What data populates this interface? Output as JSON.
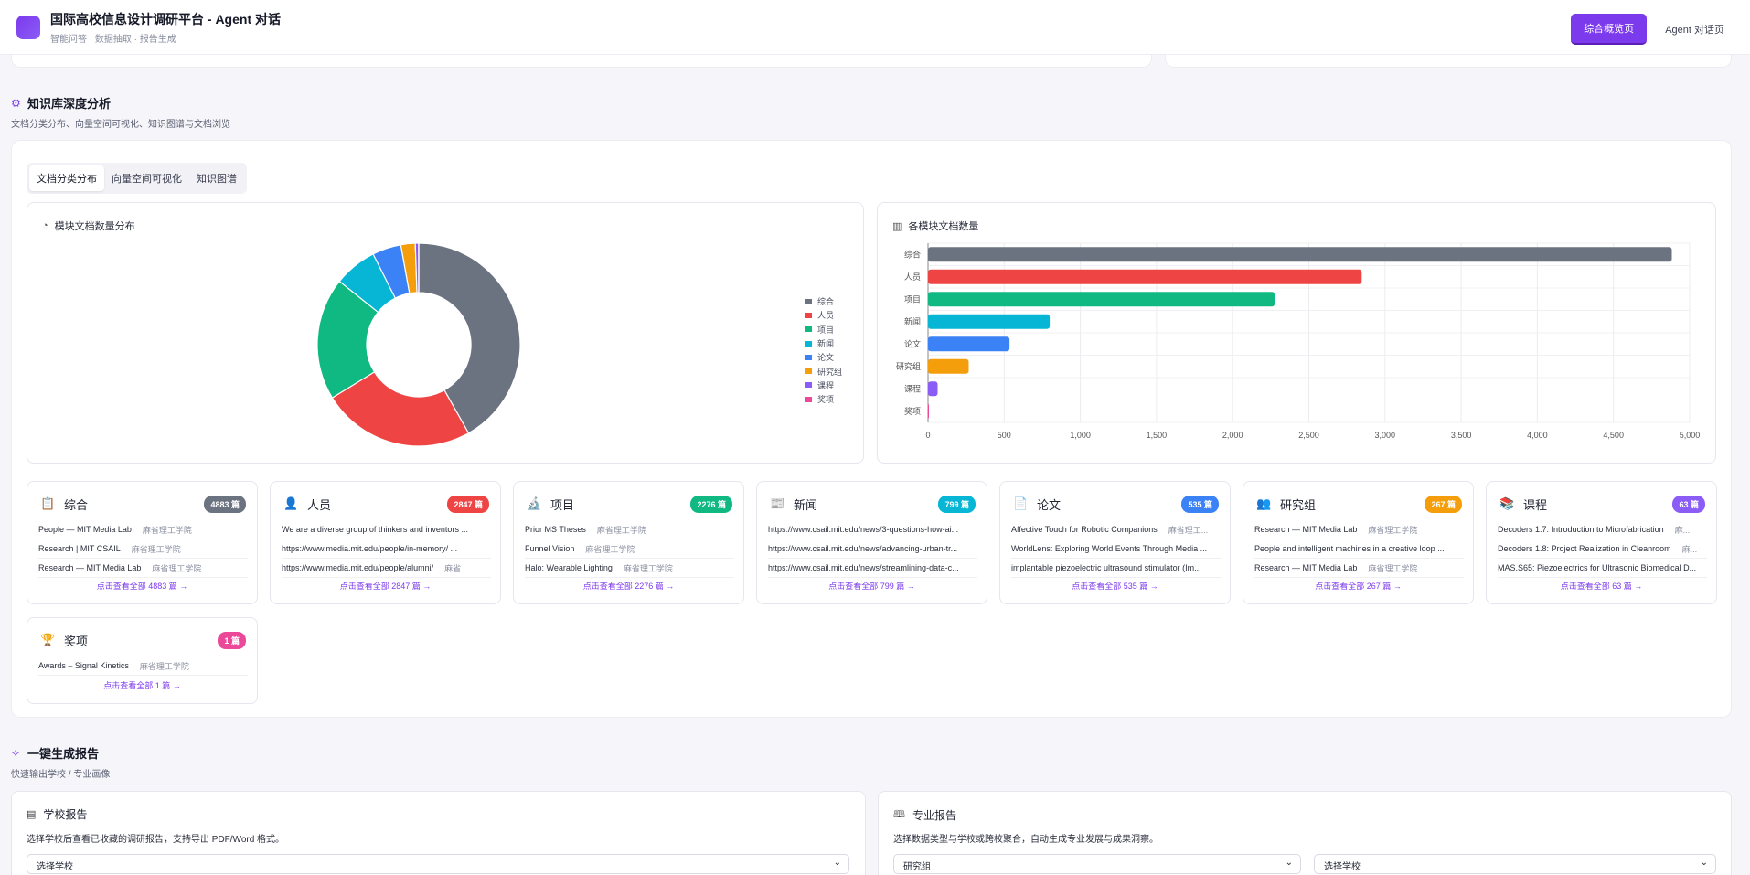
{
  "header": {
    "title": "国际高校信息设计调研平台 - Agent 对话",
    "subtitle": "智能问答 · 数据抽取 · 报告生成",
    "nav": [
      "综合概览页",
      "Agent 对话页"
    ]
  },
  "kb": {
    "title": "知识库深度分析",
    "subtitle": "文档分类分布、向量空间可视化、知识图谱与文档浏览",
    "tabs": [
      "文档分类分布",
      "向量空间可视化",
      "知识图谱"
    ]
  },
  "donut": {
    "title": "模块文档数量分布",
    "legend": [
      "综合",
      "人员",
      "项目",
      "新闻",
      "论文",
      "研究组",
      "课程",
      "奖项"
    ]
  },
  "bar": {
    "title": "各模块文档数量"
  },
  "chart_data": [
    {
      "type": "pie",
      "title": "模块文档数量分布",
      "categories": [
        "综合",
        "人员",
        "项目",
        "新闻",
        "论文",
        "研究组",
        "课程",
        "奖项"
      ],
      "values": [
        4883,
        2847,
        2276,
        799,
        535,
        267,
        63,
        1
      ],
      "colors": [
        "#6b7280",
        "#ef4444",
        "#10b981",
        "#06b6d4",
        "#3b82f6",
        "#f59e0b",
        "#8b5cf6",
        "#ec4899"
      ],
      "legend": "right"
    },
    {
      "type": "bar",
      "orientation": "horizontal",
      "title": "各模块文档数量",
      "categories": [
        "综合",
        "人员",
        "项目",
        "新闻",
        "论文",
        "研究组",
        "课程",
        "奖项"
      ],
      "values": [
        4883,
        2847,
        2276,
        799,
        535,
        267,
        63,
        1
      ],
      "colors": [
        "#6b7280",
        "#ef4444",
        "#10b981",
        "#06b6d4",
        "#3b82f6",
        "#f59e0b",
        "#8b5cf6",
        "#ec4899"
      ],
      "xlim": [
        0,
        5000
      ],
      "xticks": [
        "0",
        "500",
        "1,000",
        "1,500",
        "2,000",
        "2,500",
        "3,000",
        "3,500",
        "4,000",
        "4,500",
        "5,000"
      ],
      "grid": true
    }
  ],
  "modules": [
    {
      "name": "综合",
      "icon": "📋",
      "icon_name": "clipboard-icon",
      "count": "4883 篇",
      "color": "#6b7280",
      "items": [
        [
          "People — MIT Media Lab",
          "麻省理工学院"
        ],
        [
          "Research | MIT CSAIL",
          "麻省理工学院"
        ],
        [
          "Research — MIT Media Lab",
          "麻省理工学院"
        ]
      ],
      "more": "点击查看全部 4883 篇 →"
    },
    {
      "name": "人员",
      "icon": "👤",
      "icon_name": "person-icon",
      "count": "2847 篇",
      "color": "#ef4444",
      "items": [
        [
          "We are a diverse group of thinkers and inventors ...",
          ""
        ],
        [
          "https://www.media.mit.edu/people/in-memory/ ...",
          ""
        ],
        [
          "https://www.media.mit.edu/people/alumni/",
          "麻省..."
        ]
      ],
      "more": "点击查看全部 2847 篇 →"
    },
    {
      "name": "项目",
      "icon": "🔬",
      "icon_name": "microscope-icon",
      "count": "2276 篇",
      "color": "#10b981",
      "items": [
        [
          "Prior MS Theses",
          "麻省理工学院"
        ],
        [
          "Funnel Vision",
          "麻省理工学院"
        ],
        [
          "Halo: Wearable Lighting",
          "麻省理工学院"
        ]
      ],
      "more": "点击查看全部 2276 篇 →"
    },
    {
      "name": "新闻",
      "icon": "📰",
      "icon_name": "newspaper-icon",
      "count": "799 篇",
      "color": "#06b6d4",
      "items": [
        [
          "https://www.csail.mit.edu/news/3-questions-how-ai...",
          ""
        ],
        [
          "https://www.csail.mit.edu/news/advancing-urban-tr...",
          ""
        ],
        [
          "https://www.csail.mit.edu/news/streamlining-data-c...",
          ""
        ]
      ],
      "more": "点击查看全部 799 篇 →"
    },
    {
      "name": "论文",
      "icon": "📄",
      "icon_name": "document-icon",
      "count": "535 篇",
      "color": "#3b82f6",
      "items": [
        [
          "Affective Touch for Robotic Companions",
          "麻省理工..."
        ],
        [
          "WorldLens: Exploring World Events Through Media ...",
          ""
        ],
        [
          "implantable piezoelectric ultrasound stimulator (Im...",
          ""
        ]
      ],
      "more": "点击查看全部 535 篇 →"
    },
    {
      "name": "研究组",
      "icon": "👥",
      "icon_name": "group-icon",
      "count": "267 篇",
      "color": "#f59e0b",
      "items": [
        [
          "Research — MIT Media Lab",
          "麻省理工学院"
        ],
        [
          "People and intelligent machines in a creative loop ...",
          ""
        ],
        [
          "Research — MIT Media Lab",
          "麻省理工学院"
        ]
      ],
      "more": "点击查看全部 267 篇 →"
    },
    {
      "name": "课程",
      "icon": "📚",
      "icon_name": "books-icon",
      "count": "63 篇",
      "color": "#8b5cf6",
      "items": [
        [
          "Decoders 1.7: Introduction to Microfabrication",
          "麻..."
        ],
        [
          "Decoders 1.8: Project Realization in Cleanroom",
          "麻..."
        ],
        [
          "MAS.S65: Piezoelectrics for Ultrasonic Biomedical D...",
          ""
        ]
      ],
      "more": "点击查看全部 63 篇 →"
    },
    {
      "name": "奖项",
      "icon": "🏆",
      "icon_name": "trophy-icon",
      "count": "1 篇",
      "color": "#ec4899",
      "items": [
        [
          "Awards – Signal Kinetics",
          "麻省理工学院"
        ]
      ],
      "more": "点击查看全部 1 篇 →"
    }
  ],
  "report": {
    "title": "一键生成报告",
    "subtitle": "快速输出学校 / 专业画像",
    "school": {
      "title": "学校报告",
      "desc": "选择学校后查看已收藏的调研报告，支持导出 PDF/Word 格式。",
      "select": "选择学校"
    },
    "major": {
      "title": "专业报告",
      "desc": "选择数据类型与学校或跨校聚合，自动生成专业发展与成果洞察。",
      "select_type": "研究组",
      "select_school": "选择学校"
    }
  }
}
